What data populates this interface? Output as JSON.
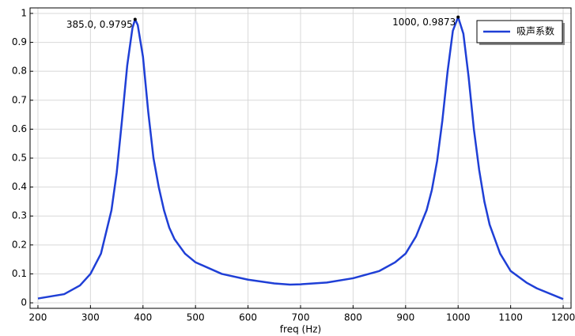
{
  "chart_data": {
    "type": "line",
    "x": [
      200,
      250,
      280,
      300,
      320,
      340,
      350,
      360,
      370,
      380,
      385,
      390,
      400,
      410,
      420,
      430,
      440,
      450,
      460,
      480,
      500,
      550,
      600,
      650,
      680,
      700,
      750,
      800,
      850,
      880,
      900,
      920,
      940,
      950,
      960,
      970,
      980,
      990,
      1000,
      1010,
      1020,
      1030,
      1040,
      1050,
      1060,
      1080,
      1100,
      1130,
      1150,
      1200
    ],
    "series": [
      {
        "name": "吸声系数",
        "color": "#1f3fd6",
        "values": [
          0.015,
          0.03,
          0.06,
          0.1,
          0.17,
          0.32,
          0.45,
          0.63,
          0.82,
          0.95,
          0.9795,
          0.96,
          0.85,
          0.66,
          0.5,
          0.4,
          0.32,
          0.26,
          0.22,
          0.17,
          0.14,
          0.1,
          0.08,
          0.067,
          0.063,
          0.064,
          0.07,
          0.085,
          0.11,
          0.14,
          0.17,
          0.23,
          0.32,
          0.39,
          0.49,
          0.63,
          0.8,
          0.94,
          0.9873,
          0.93,
          0.78,
          0.6,
          0.46,
          0.35,
          0.27,
          0.17,
          0.11,
          0.07,
          0.05,
          0.013
        ]
      }
    ],
    "annotations": [
      {
        "label": "385.0, 0.9795",
        "x": 385,
        "y": 0.9795
      },
      {
        "label": "1000, 0.9873",
        "x": 1000,
        "y": 0.9873
      }
    ],
    "xlabel": "freq (Hz)",
    "xlim": [
      185,
      1215
    ],
    "xticks": [
      200,
      300,
      400,
      500,
      600,
      700,
      800,
      900,
      1000,
      1100,
      1200
    ],
    "ylim": [
      -0.019,
      1.019
    ],
    "yticks": [
      0,
      0.1,
      0.2,
      0.3,
      0.4,
      0.5,
      0.6,
      0.7,
      0.8,
      0.9,
      1
    ],
    "grid": true,
    "legend": "upper right"
  }
}
